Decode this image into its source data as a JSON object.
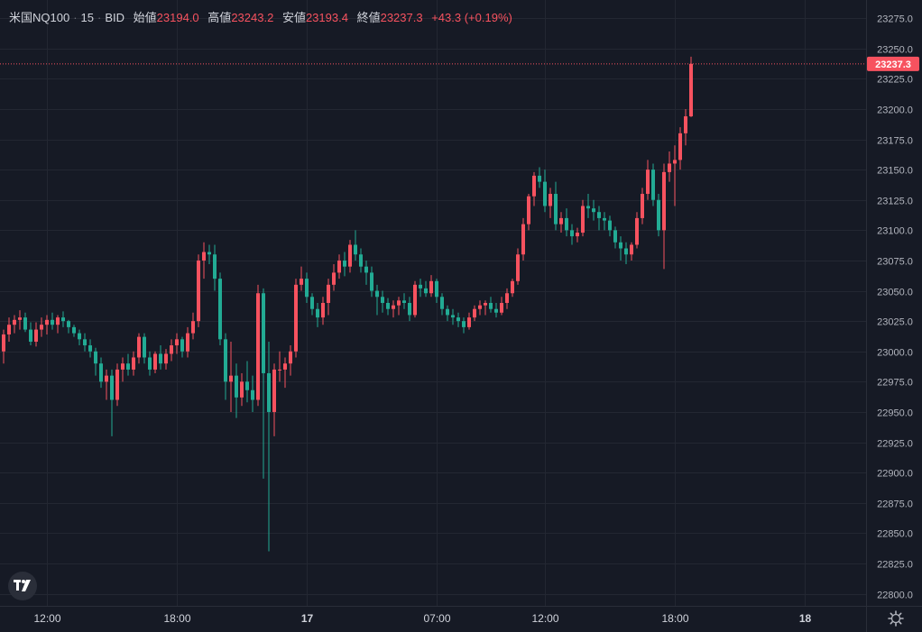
{
  "legend": {
    "symbol": "米国NQ100",
    "interval": "15",
    "source": "BID",
    "open_label": "始値",
    "open_value": "23194.0",
    "high_label": "高値",
    "high_value": "23243.2",
    "low_label": "安値",
    "low_value": "23193.4",
    "close_label": "終値",
    "close_value": "23237.3",
    "change": "+43.3 (+0.19%)"
  },
  "colors": {
    "background": "#161a25",
    "grid": "#232732",
    "up": "#f7525f",
    "down": "#22ab94",
    "text": "#b2b5be"
  },
  "icons": {
    "logo": "tradingview-logo-icon",
    "settings": "gear-icon"
  },
  "chart_data": {
    "type": "candlestick",
    "interval_minutes": 15,
    "ylim": [
      22790,
      23290
    ],
    "y_ticks": [
      22800,
      22825,
      22850,
      22875,
      22900,
      22925,
      22950,
      22975,
      23000,
      23025,
      23050,
      23075,
      23100,
      23125,
      23150,
      23175,
      23200,
      23225,
      23250,
      23275
    ],
    "y_tick_labels": [
      "22800.0",
      "22825.0",
      "22850.0",
      "22875.0",
      "22900.0",
      "22925.0",
      "22950.0",
      "22975.0",
      "23000.0",
      "23025.0",
      "23050.0",
      "23075.0",
      "23100.0",
      "23125.0",
      "23150.0",
      "23175.0",
      "23200.0",
      "23225.0",
      "23250.0",
      "23275.0"
    ],
    "x_ticks": [
      {
        "label": "12:00",
        "bar": 8
      },
      {
        "label": "18:00",
        "bar": 32
      },
      {
        "label": "17",
        "bar": 56
      },
      {
        "label": "07:00",
        "bar": 80
      },
      {
        "label": "12:00",
        "bar": 100
      },
      {
        "label": "18:00",
        "bar": 124
      },
      {
        "label": "18",
        "bar": 148
      }
    ],
    "last_price": 23237.3,
    "last_price_label": "23237.3",
    "candles": [
      [
        23000,
        23018,
        22990,
        23014
      ],
      [
        23014,
        23028,
        23008,
        23022
      ],
      [
        23022,
        23030,
        23015,
        23026
      ],
      [
        23026,
        23034,
        23018,
        23028
      ],
      [
        23028,
        23032,
        23016,
        23018
      ],
      [
        23018,
        23024,
        23005,
        23008
      ],
      [
        23008,
        23024,
        23004,
        23018
      ],
      [
        23018,
        23028,
        23012,
        23022
      ],
      [
        23022,
        23030,
        23014,
        23026
      ],
      [
        23026,
        23032,
        23018,
        23022
      ],
      [
        23022,
        23030,
        23015,
        23028
      ],
      [
        23028,
        23033,
        23020,
        23025
      ],
      [
        23025,
        23026,
        23015,
        23020
      ],
      [
        23020,
        23022,
        23012,
        23015
      ],
      [
        23015,
        23018,
        23005,
        23010
      ],
      [
        23010,
        23015,
        23000,
        23005
      ],
      [
        23005,
        23010,
        22995,
        23000
      ],
      [
        23000,
        23003,
        22980,
        22990
      ],
      [
        22990,
        22995,
        22970,
        22975
      ],
      [
        22975,
        22985,
        22960,
        22980
      ],
      [
        22980,
        22985,
        22930,
        22960
      ],
      [
        22960,
        22990,
        22955,
        22985
      ],
      [
        22985,
        22995,
        22975,
        22990
      ],
      [
        22990,
        22998,
        22980,
        22985
      ],
      [
        22985,
        23000,
        22980,
        22995
      ],
      [
        22995,
        23015,
        22990,
        23012
      ],
      [
        23012,
        23015,
        22990,
        22995
      ],
      [
        22995,
        23000,
        22980,
        22985
      ],
      [
        22985,
        23000,
        22982,
        22998
      ],
      [
        22998,
        23005,
        22985,
        22990
      ],
      [
        22990,
        23002,
        22985,
        22998
      ],
      [
        22998,
        23010,
        22992,
        23005
      ],
      [
        23005,
        23015,
        22998,
        23010
      ],
      [
        23010,
        23012,
        22995,
        23000
      ],
      [
        23000,
        23020,
        22995,
        23015
      ],
      [
        23015,
        23032,
        23010,
        23025
      ],
      [
        23025,
        23080,
        23020,
        23075
      ],
      [
        23075,
        23090,
        23060,
        23082
      ],
      [
        23082,
        23088,
        23072,
        23080
      ],
      [
        23080,
        23088,
        23050,
        23060
      ],
      [
        23060,
        23065,
        23005,
        23010
      ],
      [
        23010,
        23015,
        22960,
        22975
      ],
      [
        22975,
        23008,
        22950,
        22980
      ],
      [
        22980,
        22990,
        22945,
        22962
      ],
      [
        22962,
        22982,
        22955,
        22975
      ],
      [
        22975,
        22992,
        22958,
        22968
      ],
      [
        22968,
        22980,
        22950,
        22960
      ],
      [
        22960,
        23055,
        22955,
        23048
      ],
      [
        23048,
        23052,
        22895,
        22982
      ],
      [
        22982,
        23008,
        22835,
        22950
      ],
      [
        22950,
        22990,
        22930,
        22985
      ],
      [
        22985,
        23000,
        22975,
        22985
      ],
      [
        22985,
        22995,
        22970,
        22990
      ],
      [
        22990,
        23005,
        22980,
        23000
      ],
      [
        23000,
        23060,
        22995,
        23055
      ],
      [
        23055,
        23070,
        23050,
        23060
      ],
      [
        23060,
        23065,
        23040,
        23045
      ],
      [
        23045,
        23048,
        23030,
        23035
      ],
      [
        23035,
        23040,
        23020,
        23028
      ],
      [
        23028,
        23045,
        23022,
        23040
      ],
      [
        23040,
        23060,
        23030,
        23055
      ],
      [
        23055,
        23072,
        23050,
        23065
      ],
      [
        23065,
        23080,
        23060,
        23075
      ],
      [
        23075,
        23082,
        23062,
        23070
      ],
      [
        23070,
        23092,
        23065,
        23088
      ],
      [
        23088,
        23100,
        23075,
        23080
      ],
      [
        23080,
        23085,
        23065,
        23070
      ],
      [
        23070,
        23075,
        23055,
        23065
      ],
      [
        23065,
        23070,
        23045,
        23050
      ],
      [
        23050,
        23055,
        23030,
        23045
      ],
      [
        23045,
        23050,
        23032,
        23040
      ],
      [
        23040,
        23044,
        23030,
        23035
      ],
      [
        23035,
        23042,
        23028,
        23038
      ],
      [
        23038,
        23045,
        23030,
        23042
      ],
      [
        23042,
        23048,
        23035,
        23040
      ],
      [
        23040,
        23045,
        23025,
        23030
      ],
      [
        23030,
        23058,
        23028,
        23055
      ],
      [
        23055,
        23060,
        23045,
        23052
      ],
      [
        23052,
        23058,
        23045,
        23048
      ],
      [
        23048,
        23063,
        23045,
        23058
      ],
      [
        23058,
        23060,
        23040,
        23045
      ],
      [
        23045,
        23048,
        23030,
        23035
      ],
      [
        23035,
        23038,
        23025,
        23030
      ],
      [
        23030,
        23035,
        23022,
        23028
      ],
      [
        23028,
        23032,
        23020,
        23025
      ],
      [
        23025,
        23028,
        23015,
        23020
      ],
      [
        23020,
        23032,
        23018,
        23028
      ],
      [
        23028,
        23038,
        23025,
        23035
      ],
      [
        23035,
        23042,
        23030,
        23038
      ],
      [
        23038,
        23042,
        23030,
        23040
      ],
      [
        23040,
        23045,
        23032,
        23035
      ],
      [
        23035,
        23040,
        23028,
        23032
      ],
      [
        23032,
        23045,
        23030,
        23040
      ],
      [
        23040,
        23052,
        23035,
        23048
      ],
      [
        23048,
        23060,
        23045,
        23058
      ],
      [
        23058,
        23085,
        23055,
        23080
      ],
      [
        23080,
        23110,
        23075,
        23105
      ],
      [
        23105,
        23130,
        23100,
        23128
      ],
      [
        23128,
        23148,
        23120,
        23145
      ],
      [
        23145,
        23152,
        23135,
        23140
      ],
      [
        23140,
        23150,
        23115,
        23120
      ],
      [
        23120,
        23135,
        23110,
        23130
      ],
      [
        23130,
        23140,
        23100,
        23105
      ],
      [
        23105,
        23115,
        23098,
        23110
      ],
      [
        23110,
        23118,
        23095,
        23100
      ],
      [
        23100,
        23105,
        23088,
        23095
      ],
      [
        23095,
        23102,
        23090,
        23098
      ],
      [
        23098,
        23125,
        23095,
        23120
      ],
      [
        23120,
        23130,
        23110,
        23118
      ],
      [
        23118,
        23125,
        23108,
        23115
      ],
      [
        23115,
        23120,
        23100,
        23110
      ],
      [
        23110,
        23115,
        23100,
        23108
      ],
      [
        23108,
        23112,
        23095,
        23100
      ],
      [
        23100,
        23103,
        23085,
        23090
      ],
      [
        23090,
        23095,
        23075,
        23085
      ],
      [
        23085,
        23090,
        23072,
        23080
      ],
      [
        23080,
        23090,
        23075,
        23088
      ],
      [
        23088,
        23115,
        23085,
        23110
      ],
      [
        23110,
        23135,
        23105,
        23130
      ],
      [
        23130,
        23158,
        23125,
        23150
      ],
      [
        23150,
        23155,
        23120,
        23125
      ],
      [
        23125,
        23130,
        23095,
        23100
      ],
      [
        23100,
        23155,
        23068,
        23148
      ],
      [
        23148,
        23165,
        23140,
        23155
      ],
      [
        23155,
        23170,
        23120,
        23158
      ],
      [
        23158,
        23185,
        23150,
        23180
      ],
      [
        23180,
        23200,
        23170,
        23194
      ],
      [
        23194,
        23243.2,
        23193.4,
        23237.3
      ]
    ]
  }
}
